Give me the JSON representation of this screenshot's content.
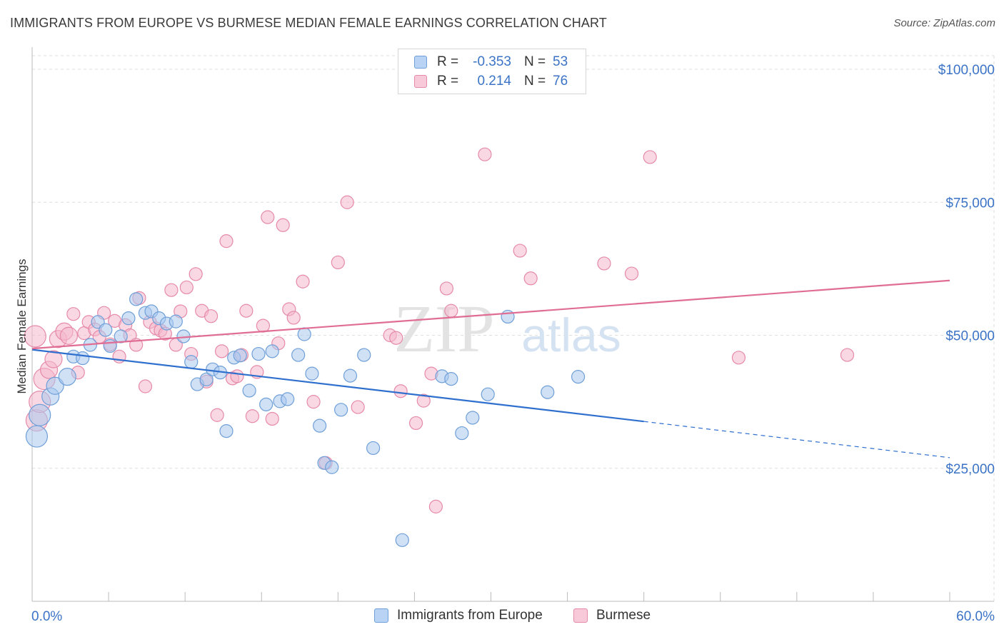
{
  "title": "IMMIGRANTS FROM EUROPE VS BURMESE MEDIAN FEMALE EARNINGS CORRELATION CHART",
  "source": "Source: ZipAtlas.com",
  "watermark": {
    "zip": "ZIP",
    "atlas": "atlas"
  },
  "legend": {
    "rows": [
      {
        "r_label": "R =",
        "r_value": "-0.353",
        "n_label": "N =",
        "n_value": "53"
      },
      {
        "r_label": "R =",
        "r_value": "0.214",
        "n_label": "N =",
        "n_value": "76"
      }
    ]
  },
  "bottom_legend": [
    "Immigrants from Europe",
    "Burmese"
  ],
  "colors": {
    "europe_fill": "#a9c8ef",
    "europe_stroke": "#6f9fd8",
    "europe_line": "#2f6fce",
    "burmese_fill": "#f4b8cc",
    "burmese_stroke": "#e68aa9",
    "burmese_line": "#e06d93",
    "axis_label": "#3b73c6",
    "grid": "#dddddd"
  },
  "chart_data": {
    "type": "scatter",
    "title": "IMMIGRANTS FROM EUROPE VS BURMESE MEDIAN FEMALE EARNINGS CORRELATION CHART",
    "xlabel": "",
    "ylabel": "Median Female Earnings",
    "xlim": [
      0,
      60
    ],
    "ylim": [
      0,
      105000
    ],
    "x_tick_labels": [
      "0.0%",
      "60.0%"
    ],
    "y_ticks": [
      25000,
      50000,
      75000,
      100000
    ],
    "y_tick_labels": [
      "$25,000",
      "$50,000",
      "$75,000",
      "$100,000"
    ],
    "grid": true,
    "series": [
      {
        "name": "Immigrants from Europe",
        "points": [
          [
            0.3,
            31000
          ],
          [
            0.5,
            35000
          ],
          [
            1.2,
            38500
          ],
          [
            1.5,
            40500
          ],
          [
            2.3,
            42200
          ],
          [
            2.7,
            46000
          ],
          [
            3.3,
            45700
          ],
          [
            3.8,
            48200
          ],
          [
            4.3,
            52500
          ],
          [
            4.8,
            51000
          ],
          [
            5.1,
            48000
          ],
          [
            5.8,
            49800
          ],
          [
            6.3,
            53200
          ],
          [
            6.8,
            56800
          ],
          [
            7.4,
            54200
          ],
          [
            7.8,
            54500
          ],
          [
            8.3,
            53200
          ],
          [
            8.8,
            52200
          ],
          [
            9.4,
            52600
          ],
          [
            9.9,
            49800
          ],
          [
            10.4,
            45000
          ],
          [
            10.8,
            40800
          ],
          [
            11.4,
            41700
          ],
          [
            11.8,
            43600
          ],
          [
            12.3,
            43000
          ],
          [
            12.7,
            32000
          ],
          [
            13.2,
            45800
          ],
          [
            13.6,
            46200
          ],
          [
            14.2,
            39600
          ],
          [
            14.8,
            46500
          ],
          [
            15.3,
            37000
          ],
          [
            15.7,
            47000
          ],
          [
            16.2,
            37600
          ],
          [
            16.7,
            38000
          ],
          [
            17.4,
            46300
          ],
          [
            17.8,
            50200
          ],
          [
            18.3,
            42800
          ],
          [
            18.8,
            33000
          ],
          [
            19.1,
            26000
          ],
          [
            19.6,
            25200
          ],
          [
            20.2,
            36000
          ],
          [
            20.8,
            42400
          ],
          [
            21.7,
            46300
          ],
          [
            22.3,
            28800
          ],
          [
            24.2,
            11500
          ],
          [
            26.8,
            42300
          ],
          [
            27.4,
            41800
          ],
          [
            28.1,
            31600
          ],
          [
            28.8,
            34500
          ],
          [
            29.8,
            38900
          ],
          [
            31.1,
            53500
          ],
          [
            33.7,
            39300
          ],
          [
            35.7,
            42200
          ]
        ]
      },
      {
        "name": "Burmese",
        "points": [
          [
            0.3,
            34000
          ],
          [
            0.5,
            37500
          ],
          [
            0.8,
            41800
          ],
          [
            1.1,
            43500
          ],
          [
            1.4,
            45500
          ],
          [
            1.7,
            49300
          ],
          [
            2.1,
            50700
          ],
          [
            2.4,
            49900
          ],
          [
            2.7,
            54000
          ],
          [
            3.0,
            43000
          ],
          [
            3.4,
            50400
          ],
          [
            3.7,
            52500
          ],
          [
            4.1,
            51100
          ],
          [
            4.4,
            49700
          ],
          [
            4.7,
            54200
          ],
          [
            5.1,
            48300
          ],
          [
            5.4,
            52700
          ],
          [
            5.7,
            46000
          ],
          [
            6.1,
            51900
          ],
          [
            6.4,
            50000
          ],
          [
            6.8,
            48200
          ],
          [
            7.0,
            57000
          ],
          [
            7.4,
            40400
          ],
          [
            7.7,
            52500
          ],
          [
            8.1,
            51300
          ],
          [
            8.4,
            50900
          ],
          [
            8.7,
            50300
          ],
          [
            9.1,
            58500
          ],
          [
            9.4,
            48200
          ],
          [
            9.7,
            54500
          ],
          [
            10.1,
            59000
          ],
          [
            10.4,
            46500
          ],
          [
            10.7,
            61500
          ],
          [
            11.1,
            54600
          ],
          [
            11.4,
            41300
          ],
          [
            11.7,
            53600
          ],
          [
            12.1,
            35000
          ],
          [
            12.4,
            47000
          ],
          [
            12.7,
            67700
          ],
          [
            13.1,
            41900
          ],
          [
            13.4,
            42300
          ],
          [
            13.7,
            46300
          ],
          [
            14.0,
            54600
          ],
          [
            14.4,
            34800
          ],
          [
            14.7,
            43100
          ],
          [
            15.1,
            51800
          ],
          [
            15.4,
            72200
          ],
          [
            15.7,
            34300
          ],
          [
            16.1,
            48500
          ],
          [
            16.4,
            70700
          ],
          [
            16.8,
            54900
          ],
          [
            17.1,
            53300
          ],
          [
            17.7,
            60100
          ],
          [
            18.4,
            37500
          ],
          [
            19.2,
            26000
          ],
          [
            20.0,
            63700
          ],
          [
            20.6,
            75000
          ],
          [
            21.3,
            36500
          ],
          [
            23.4,
            50000
          ],
          [
            23.8,
            49500
          ],
          [
            24.1,
            39500
          ],
          [
            25.1,
            33500
          ],
          [
            25.6,
            37700
          ],
          [
            26.1,
            42800
          ],
          [
            26.4,
            17800
          ],
          [
            27.1,
            58800
          ],
          [
            27.4,
            54600
          ],
          [
            29.6,
            84000
          ],
          [
            31.9,
            65900
          ],
          [
            32.6,
            60700
          ],
          [
            37.4,
            63500
          ],
          [
            39.2,
            61600
          ],
          [
            40.4,
            83500
          ],
          [
            46.2,
            45800
          ],
          [
            53.3,
            46300
          ],
          [
            0.2,
            49800
          ]
        ]
      }
    ],
    "trendlines": [
      {
        "series": "Immigrants from Europe",
        "x": [
          0,
          40
        ],
        "y": [
          47300,
          33800
        ],
        "dashed_extension_to": [
          60,
          27000
        ]
      },
      {
        "series": "Burmese",
        "x": [
          0,
          60
        ],
        "y": [
          47500,
          60300
        ]
      }
    ]
  }
}
